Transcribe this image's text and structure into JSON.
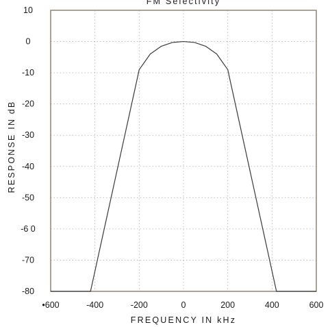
{
  "chart_data": {
    "type": "line",
    "title": "FM Selectivity",
    "xlabel": "FREQUENCY IN kHz",
    "ylabel": "RESPONSE IN dB",
    "xlim": [
      -600,
      600
    ],
    "ylim": [
      -80,
      10
    ],
    "x_tick_labels": [
      "•600",
      "-400",
      "-200",
      "0",
      "200",
      "400",
      "600"
    ],
    "y_tick_labels": [
      "10",
      "0",
      "-10",
      "-20",
      "-30",
      "-40",
      "-50",
      "-6 0",
      "-70",
      "-80"
    ],
    "grid": true,
    "legend": "none",
    "series": [
      {
        "x": [
          -600,
          -420,
          -200,
          -150,
          -100,
          -50,
          0,
          50,
          100,
          150,
          200,
          420,
          600
        ],
        "y": [
          -80,
          -80,
          -9,
          -4,
          -1.5,
          -0.3,
          0,
          -0.3,
          -1.5,
          -4,
          -9,
          -80,
          -80
        ]
      }
    ],
    "colors": {
      "line": "#3a3a3a",
      "frame": "#8a7a66",
      "grid": "#b0b0b0"
    }
  }
}
